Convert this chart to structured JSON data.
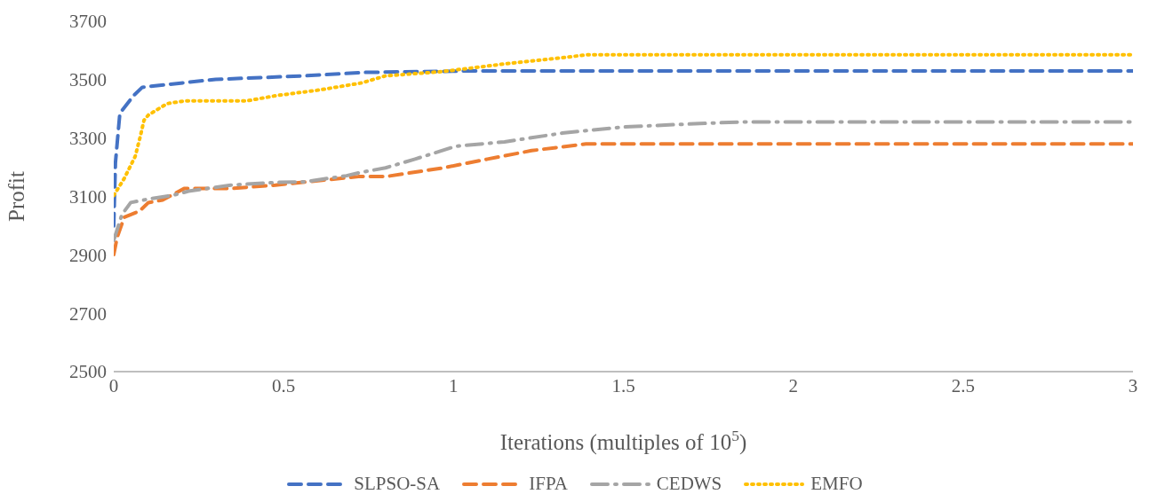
{
  "chart_data": {
    "type": "line",
    "xlabel": "Iterations (multiples of 10$^{5}$)",
    "ylabel": "Profit",
    "xlim": [
      0,
      3
    ],
    "xticks": [
      0,
      0.5,
      1,
      1.5,
      2,
      2.5,
      3
    ],
    "ylim": [
      2500,
      3700
    ],
    "yticks": [
      2500,
      2700,
      2900,
      3100,
      3300,
      3500,
      3700
    ],
    "grid": false,
    "legend": "bottom",
    "marker": "none",
    "series": [
      {
        "name": "SLPSO-SA",
        "color": "#4472c4",
        "line_style": "dashed",
        "x": [
          0,
          0.005,
          0.018,
          0.058,
          0.084,
          0.154,
          0.3,
          0.56,
          0.74,
          1.05,
          3
        ],
        "values": [
          2999,
          3216,
          3385,
          3445,
          3474,
          3483,
          3501,
          3513,
          3525,
          3530,
          3530
        ]
      },
      {
        "name": "IFPA",
        "color": "#ed7d31",
        "line_style": "dashed",
        "x": [
          0,
          0.01,
          0.031,
          0.076,
          0.102,
          0.144,
          0.207,
          0.345,
          0.476,
          0.72,
          0.8,
          0.97,
          1.1,
          1.23,
          1.39,
          3
        ],
        "values": [
          2901,
          2960,
          3029,
          3050,
          3079,
          3088,
          3127,
          3127,
          3139,
          3168,
          3168,
          3198,
          3228,
          3257,
          3280,
          3280
        ]
      },
      {
        "name": "CEDWS",
        "color": "#a5a5a5",
        "line_style": "dashdot",
        "x": [
          0,
          0.024,
          0.05,
          0.102,
          0.17,
          0.22,
          0.345,
          0.476,
          0.56,
          0.685,
          0.73,
          0.8,
          0.887,
          1.007,
          1.15,
          1.32,
          1.5,
          1.67,
          1.84,
          3
        ],
        "values": [
          2950,
          3038,
          3079,
          3091,
          3103,
          3118,
          3139,
          3148,
          3150,
          3171,
          3183,
          3198,
          3228,
          3272,
          3287,
          3317,
          3338,
          3347,
          3355,
          3355
        ]
      },
      {
        "name": "EMFO",
        "color": "#ffc000",
        "line_style": "dotted",
        "x": [
          0,
          0.031,
          0.063,
          0.078,
          0.089,
          0.102,
          0.157,
          0.207,
          0.39,
          0.476,
          0.607,
          0.73,
          0.8,
          0.97,
          1.15,
          1.32,
          1.39,
          3
        ],
        "values": [
          3103,
          3162,
          3237,
          3305,
          3361,
          3379,
          3418,
          3427,
          3427,
          3445,
          3465,
          3489,
          3513,
          3528,
          3554,
          3575,
          3585,
          3585
        ]
      }
    ]
  }
}
